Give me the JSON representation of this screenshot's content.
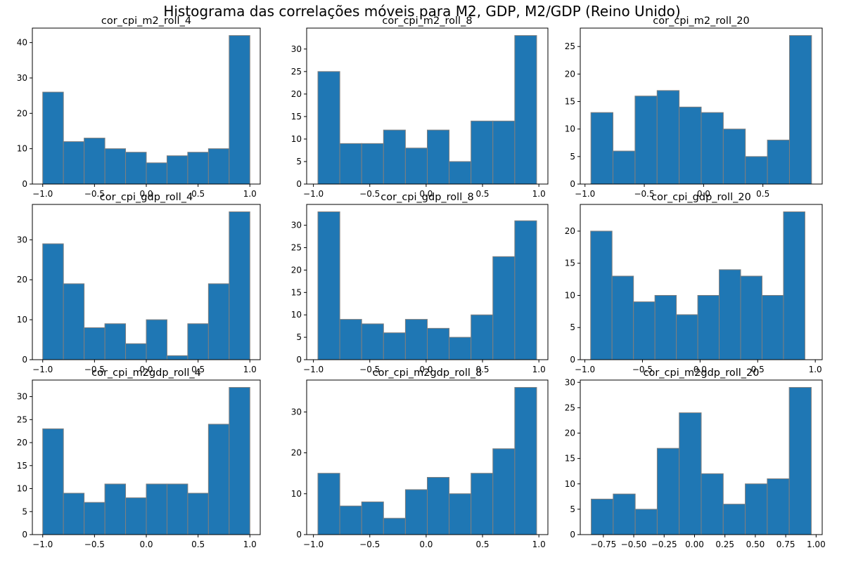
{
  "figure": {
    "title": "Histograma das correlações móveis para M2, GDP, M2/GDP (Reino Unido)"
  },
  "colors": {
    "bar_fill": "#1f77b4",
    "bar_edge": "#7f7f7f",
    "axis": "#000000",
    "background": "#ffffff"
  },
  "chart_data": [
    {
      "type": "bar",
      "title": "cor_cpi_m2_roll_4",
      "bin_edges": [
        -1.0,
        -0.8,
        -0.6,
        -0.4,
        -0.2,
        0.0,
        0.2,
        0.4,
        0.6,
        0.8,
        1.0
      ],
      "counts": [
        26,
        12,
        13,
        10,
        9,
        6,
        8,
        9,
        10,
        42
      ],
      "xlim": [
        -1.1,
        1.1
      ],
      "ylim": [
        0,
        44.1
      ],
      "xticks": [
        -1.0,
        -0.5,
        0.0,
        0.5,
        1.0
      ],
      "xtick_labels": [
        "−1.0",
        "−0.5",
        "0.0",
        "0.5",
        "1.0"
      ],
      "yticks": [
        0,
        10,
        20,
        30,
        40
      ],
      "ytick_labels": [
        "0",
        "10",
        "20",
        "30",
        "40"
      ]
    },
    {
      "type": "bar",
      "title": "cor_cpi_m2_roll_8",
      "bin_edges": [
        -0.96,
        -0.766,
        -0.572,
        -0.378,
        -0.184,
        0.01,
        0.204,
        0.398,
        0.592,
        0.786,
        0.98
      ],
      "counts": [
        25,
        9,
        9,
        12,
        8,
        12,
        5,
        14,
        14,
        33
      ],
      "xlim": [
        -1.06,
        1.08
      ],
      "ylim": [
        0,
        34.65
      ],
      "xticks": [
        -1.0,
        -0.5,
        0.0,
        0.5,
        1.0
      ],
      "xtick_labels": [
        "−1.0",
        "−0.5",
        "0.0",
        "0.5",
        "1.0"
      ],
      "yticks": [
        0,
        5,
        10,
        15,
        20,
        25,
        30
      ],
      "ytick_labels": [
        "0",
        "5",
        "10",
        "15",
        "20",
        "25",
        "30"
      ]
    },
    {
      "type": "bar",
      "title": "cor_cpi_m2_roll_20",
      "bin_edges": [
        -0.95,
        -0.764,
        -0.578,
        -0.392,
        -0.206,
        -0.02,
        0.166,
        0.352,
        0.538,
        0.724,
        0.91
      ],
      "counts": [
        13,
        6,
        16,
        17,
        14,
        13,
        10,
        5,
        8,
        27
      ],
      "xlim": [
        -1.04,
        1.0
      ],
      "ylim": [
        0,
        28.35
      ],
      "xticks": [
        -1.0,
        -0.5,
        0.0,
        0.5
      ],
      "xtick_labels": [
        "−1.0",
        "−0.5",
        "0.0",
        "0.5"
      ],
      "yticks": [
        0,
        5,
        10,
        15,
        20,
        25
      ],
      "ytick_labels": [
        "0",
        "5",
        "10",
        "15",
        "20",
        "25"
      ]
    },
    {
      "type": "bar",
      "title": "cor_cpi_gdp_roll_4",
      "bin_edges": [
        -1.0,
        -0.8,
        -0.6,
        -0.4,
        -0.2,
        0.0,
        0.2,
        0.4,
        0.6,
        0.8,
        1.0
      ],
      "counts": [
        29,
        19,
        8,
        9,
        4,
        10,
        1,
        9,
        19,
        37
      ],
      "xlim": [
        -1.1,
        1.1
      ],
      "ylim": [
        0,
        38.85
      ],
      "xticks": [
        -1.0,
        -0.5,
        0.0,
        0.5,
        1.0
      ],
      "xtick_labels": [
        "−1.0",
        "−0.5",
        "0.0",
        "0.5",
        "1.0"
      ],
      "yticks": [
        0,
        10,
        20,
        30
      ],
      "ytick_labels": [
        "0",
        "10",
        "20",
        "30"
      ]
    },
    {
      "type": "bar",
      "title": "cor_cpi_gdp_roll_8",
      "bin_edges": [
        -0.96,
        -0.766,
        -0.572,
        -0.378,
        -0.184,
        0.01,
        0.204,
        0.398,
        0.592,
        0.786,
        0.98
      ],
      "counts": [
        33,
        9,
        8,
        6,
        9,
        7,
        5,
        10,
        23,
        31
      ],
      "xlim": [
        -1.06,
        1.08
      ],
      "ylim": [
        0,
        34.65
      ],
      "xticks": [
        -1.0,
        -0.5,
        0.0,
        0.5,
        1.0
      ],
      "xtick_labels": [
        "−1.0",
        "−0.5",
        "0.0",
        "0.5",
        "1.0"
      ],
      "yticks": [
        0,
        5,
        10,
        15,
        20,
        25,
        30
      ],
      "ytick_labels": [
        "0",
        "5",
        "10",
        "15",
        "20",
        "25",
        "30"
      ]
    },
    {
      "type": "bar",
      "title": "cor_cpi_gdp_roll_20",
      "bin_edges": [
        -0.95,
        -0.764,
        -0.578,
        -0.392,
        -0.206,
        -0.02,
        0.166,
        0.352,
        0.538,
        0.724,
        0.91
      ],
      "counts": [
        20,
        13,
        9,
        10,
        7,
        10,
        14,
        13,
        10,
        23
      ],
      "xlim": [
        -1.04,
        1.06
      ],
      "ylim": [
        0,
        24.15
      ],
      "xticks": [
        -1.0,
        -0.5,
        0.0,
        0.5,
        1.0
      ],
      "xtick_labels": [
        "−1.0",
        "−0.5",
        "0.0",
        "0.5",
        "1.0"
      ],
      "yticks": [
        0,
        5,
        10,
        15,
        20
      ],
      "ytick_labels": [
        "0",
        "5",
        "10",
        "15",
        "20"
      ]
    },
    {
      "type": "bar",
      "title": "cor_cpi_m2gdp_roll_4",
      "bin_edges": [
        -1.0,
        -0.8,
        -0.6,
        -0.4,
        -0.2,
        0.0,
        0.2,
        0.4,
        0.6,
        0.8,
        1.0
      ],
      "counts": [
        23,
        9,
        7,
        11,
        8,
        11,
        11,
        9,
        24,
        32
      ],
      "xlim": [
        -1.1,
        1.1
      ],
      "ylim": [
        0,
        33.6
      ],
      "xticks": [
        -1.0,
        -0.5,
        0.0,
        0.5,
        1.0
      ],
      "xtick_labels": [
        "−1.0",
        "−0.5",
        "0.0",
        "0.5",
        "1.0"
      ],
      "yticks": [
        0,
        5,
        10,
        15,
        20,
        25,
        30
      ],
      "ytick_labels": [
        "0",
        "5",
        "10",
        "15",
        "20",
        "25",
        "30"
      ]
    },
    {
      "type": "bar",
      "title": "cor_cpi_m2gdp_roll_8",
      "bin_edges": [
        -0.96,
        -0.766,
        -0.572,
        -0.378,
        -0.184,
        0.01,
        0.204,
        0.398,
        0.592,
        0.786,
        0.98
      ],
      "counts": [
        15,
        7,
        8,
        4,
        11,
        14,
        10,
        15,
        21,
        36
      ],
      "xlim": [
        -1.06,
        1.08
      ],
      "ylim": [
        0,
        37.8
      ],
      "xticks": [
        -1.0,
        -0.5,
        0.0,
        0.5,
        1.0
      ],
      "xtick_labels": [
        "−1.0",
        "−0.5",
        "0.0",
        "0.5",
        "1.0"
      ],
      "yticks": [
        0,
        10,
        20,
        30
      ],
      "ytick_labels": [
        "0",
        "10",
        "20",
        "30"
      ]
    },
    {
      "type": "bar",
      "title": "cor_cpi_m2gdp_roll_20",
      "bin_edges": [
        -0.85,
        -0.669,
        -0.488,
        -0.307,
        -0.126,
        0.055,
        0.236,
        0.417,
        0.598,
        0.779,
        0.96
      ],
      "counts": [
        7,
        8,
        5,
        17,
        24,
        12,
        6,
        10,
        11,
        29
      ],
      "xlim": [
        -0.94,
        1.05
      ],
      "ylim": [
        0,
        30.45
      ],
      "xticks": [
        -0.75,
        -0.5,
        -0.25,
        0.0,
        0.25,
        0.5,
        0.75,
        1.0
      ],
      "xtick_labels": [
        "−0.75",
        "−0.50",
        "−0.25",
        "0.00",
        "0.25",
        "0.50",
        "0.75",
        "1.00"
      ],
      "yticks": [
        0,
        5,
        10,
        15,
        20,
        25,
        30
      ],
      "ytick_labels": [
        "0",
        "5",
        "10",
        "15",
        "20",
        "25",
        "30"
      ]
    }
  ]
}
